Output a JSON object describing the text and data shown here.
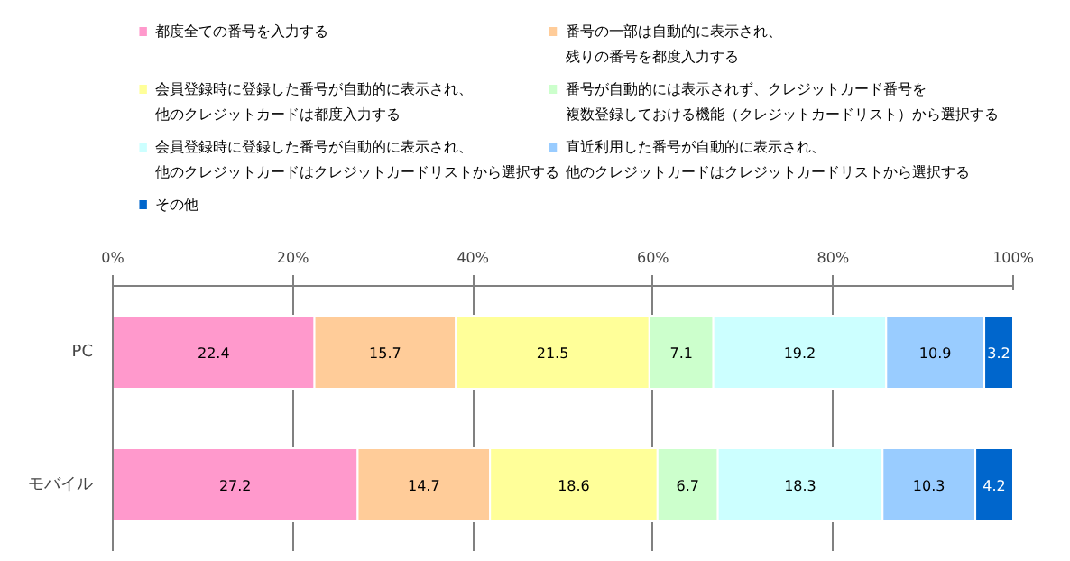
{
  "chart_data": {
    "type": "bar",
    "orientation": "horizontal",
    "stacked": true,
    "categories": [
      "PC",
      "モバイル"
    ],
    "series": [
      {
        "name": "都度全ての番号を入力する",
        "color": "#ff99cc",
        "values": [
          22.4,
          27.2
        ]
      },
      {
        "name": "番号の一部は自動的に表示され、残りの番号を都度入力する",
        "color": "#ffcc99",
        "values": [
          15.7,
          14.7
        ]
      },
      {
        "name": "会員登録時に登録した番号が自動的に表示され、他のクレジットカードは都度入力する",
        "color": "#ffff99",
        "values": [
          21.5,
          18.6
        ]
      },
      {
        "name": "番号が自動的には表示されず、クレジットカード番号を複数登録しておける機能（クレジットカードリスト）から選択する",
        "color": "#ccffcc",
        "values": [
          7.1,
          6.7
        ]
      },
      {
        "name": "会員登録時に登録した番号が自動的に表示され、他のクレジットカードはクレジットカードリストから選択する",
        "color": "#ccffff",
        "values": [
          19.2,
          18.3
        ]
      },
      {
        "name": "直近利用した番号が自動的に表示され、他のクレジットカードはクレジットカードリストから選択する",
        "color": "#99ccff",
        "values": [
          10.9,
          10.3
        ]
      },
      {
        "name": "その他",
        "color": "#0066cc",
        "values": [
          3.2,
          4.2
        ]
      }
    ],
    "xlim": [
      0,
      100
    ],
    "xticks": [
      {
        "value": 0,
        "label": "0%"
      },
      {
        "value": 20,
        "label": "20%"
      },
      {
        "value": 40,
        "label": "40%"
      },
      {
        "value": 60,
        "label": "60%"
      },
      {
        "value": 80,
        "label": "80%"
      },
      {
        "value": 100,
        "label": "100%"
      }
    ],
    "grid": "x",
    "legend": "top",
    "data_labels": true
  }
}
